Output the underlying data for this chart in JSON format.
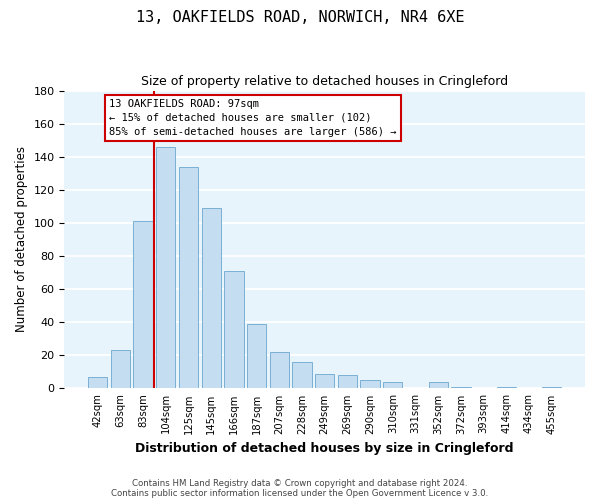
{
  "title": "13, OAKFIELDS ROAD, NORWICH, NR4 6XE",
  "subtitle": "Size of property relative to detached houses in Cringleford",
  "xlabel": "Distribution of detached houses by size in Cringleford",
  "ylabel": "Number of detached properties",
  "bar_color": "#c5ddf0",
  "bar_edge_color": "#7ab0d4",
  "background_color": "#e8f4fc",
  "grid_color": "white",
  "bins": [
    "42sqm",
    "63sqm",
    "83sqm",
    "104sqm",
    "125sqm",
    "145sqm",
    "166sqm",
    "187sqm",
    "207sqm",
    "228sqm",
    "249sqm",
    "269sqm",
    "290sqm",
    "310sqm",
    "331sqm",
    "352sqm",
    "372sqm",
    "393sqm",
    "414sqm",
    "434sqm",
    "455sqm"
  ],
  "values": [
    7,
    23,
    101,
    146,
    134,
    109,
    71,
    39,
    22,
    16,
    9,
    8,
    5,
    4,
    0,
    4,
    1,
    0,
    1,
    0,
    1
  ],
  "ylim": [
    0,
    180
  ],
  "yticks": [
    0,
    20,
    40,
    60,
    80,
    100,
    120,
    140,
    160,
    180
  ],
  "property_line_color": "#cc0000",
  "property_line_bin_index": 3,
  "annotation_line1": "13 OAKFIELDS ROAD: 97sqm",
  "annotation_line2": "← 15% of detached houses are smaller (102)",
  "annotation_line3": "85% of semi-detached houses are larger (586) →",
  "footer_line1": "Contains HM Land Registry data © Crown copyright and database right 2024.",
  "footer_line2": "Contains public sector information licensed under the Open Government Licence v 3.0."
}
